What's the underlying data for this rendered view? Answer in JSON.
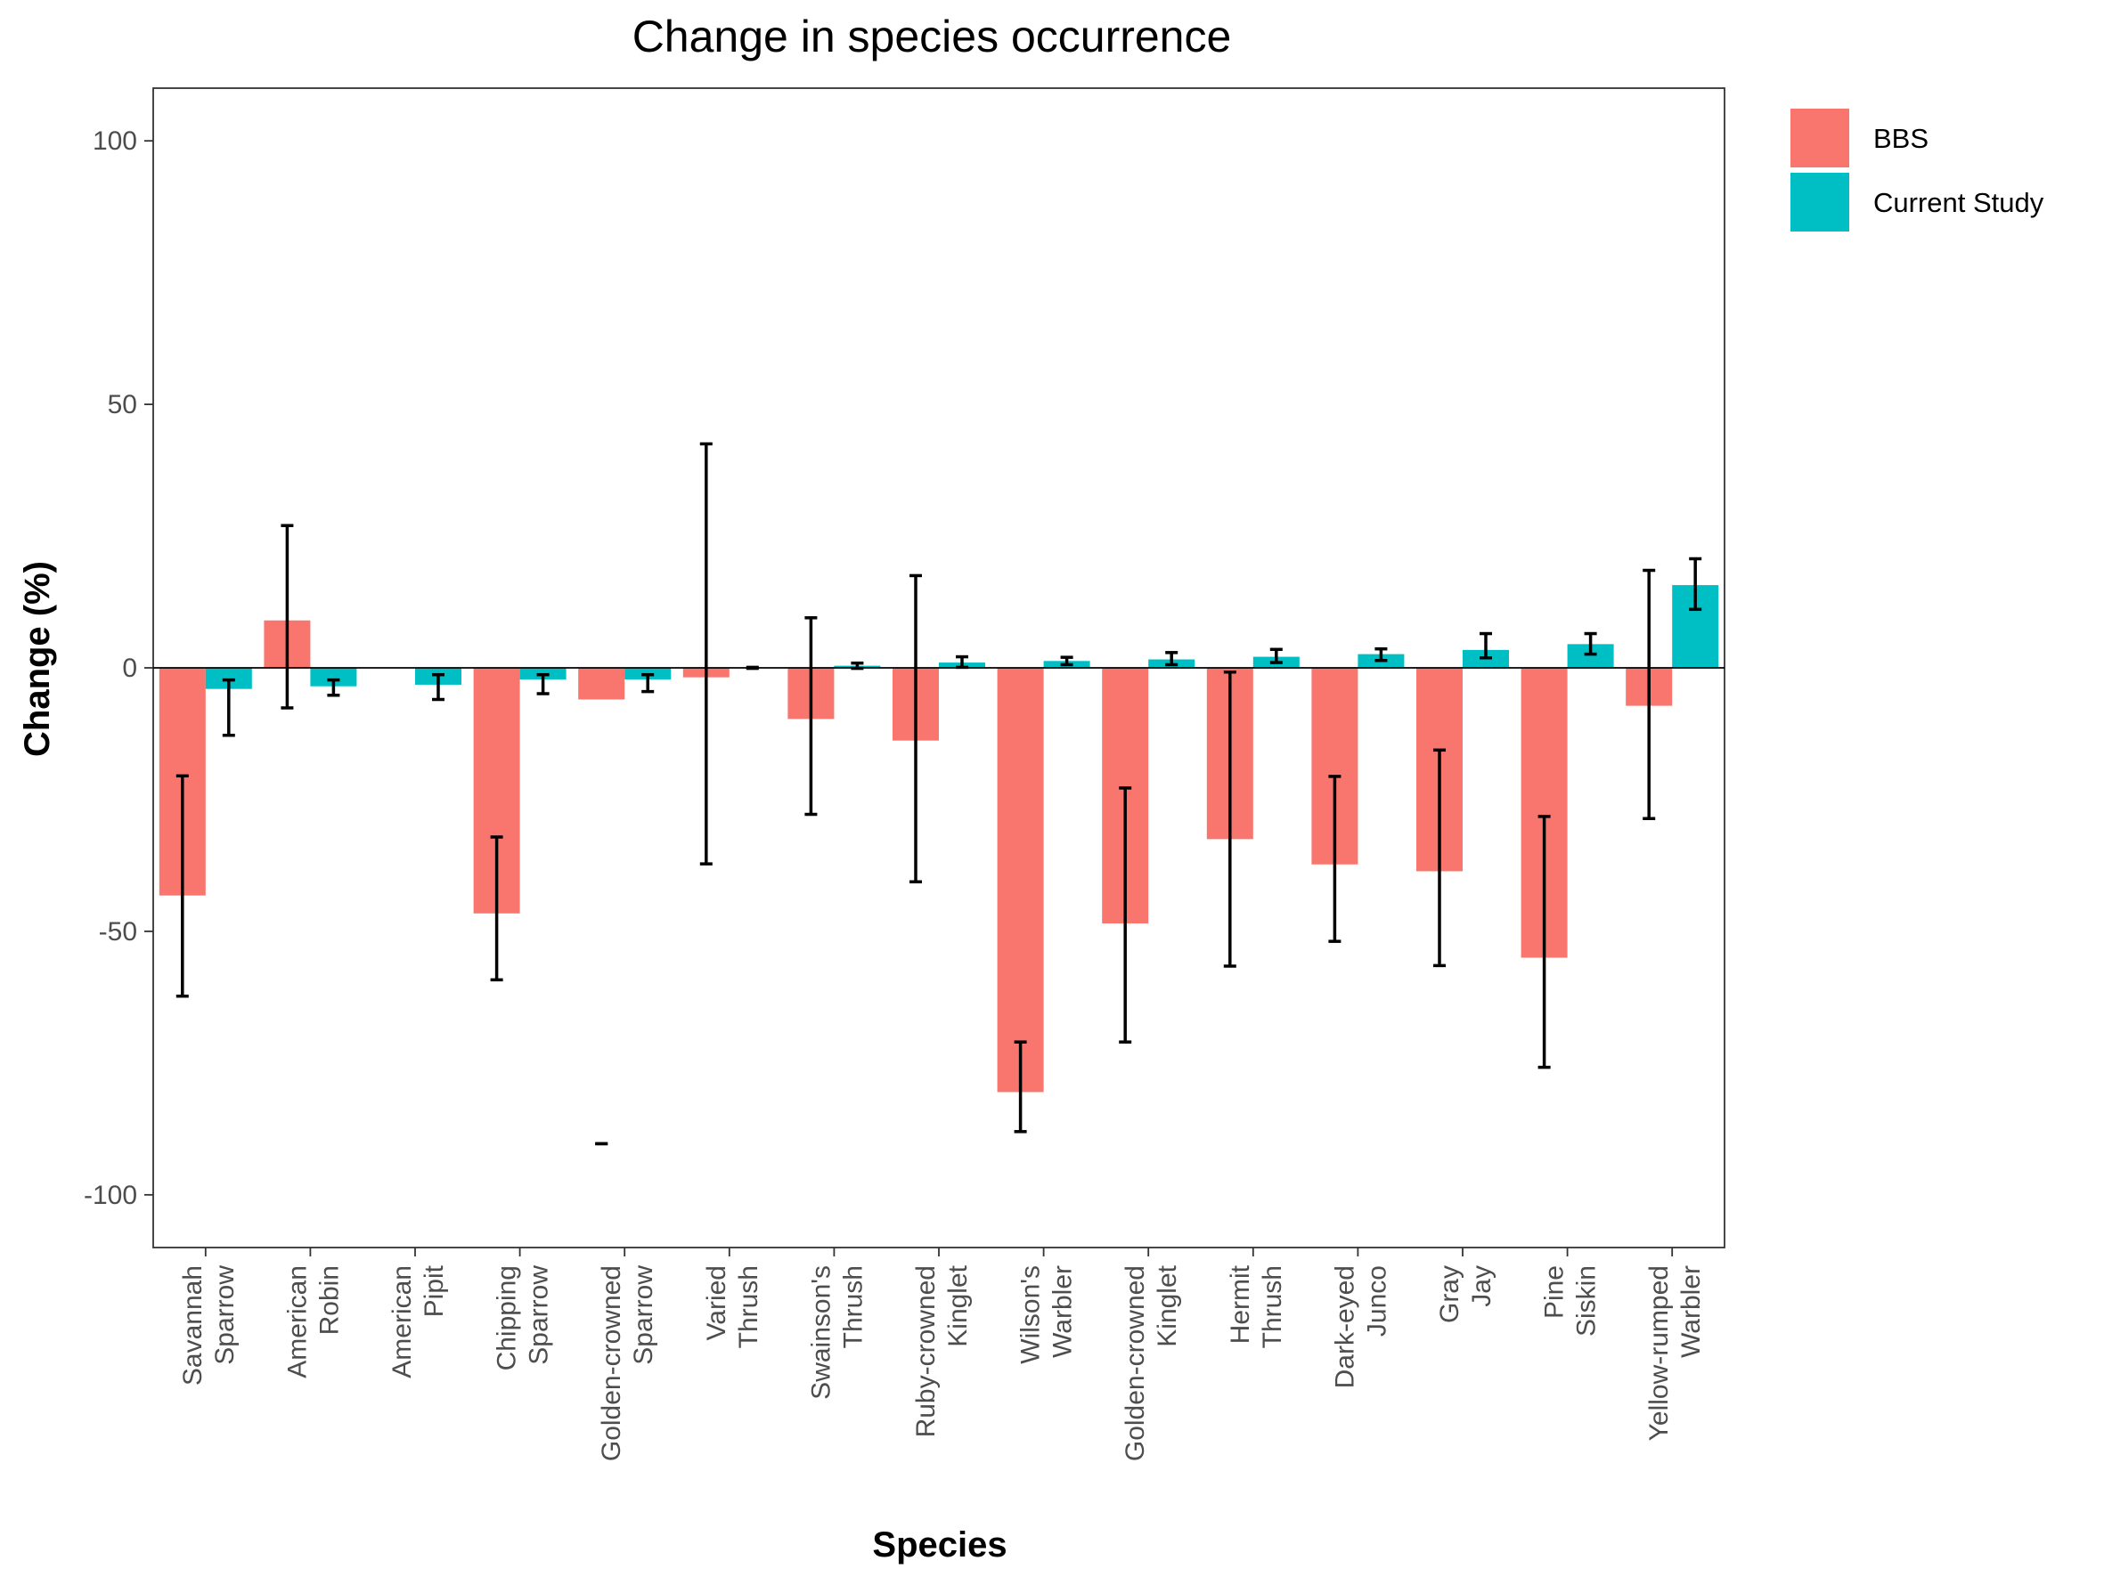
{
  "chart_data": {
    "type": "bar",
    "title": "Change in species occurrence",
    "xlabel": "Species",
    "ylabel": "Change (%)",
    "ylim": [
      -110,
      110
    ],
    "yticks": [
      -100,
      -50,
      0,
      50,
      100
    ],
    "ytick_labels": [
      "-100",
      "-50",
      "0",
      "50",
      "100"
    ],
    "grid": false,
    "legend_position": "right",
    "categories": [
      [
        "Savannah",
        "Sparrow"
      ],
      [
        "American",
        "Robin"
      ],
      [
        "American",
        "Pipit"
      ],
      [
        "Chipping",
        "Sparrow"
      ],
      [
        "Golden-crowned",
        "Sparrow"
      ],
      [
        "Varied",
        "Thrush"
      ],
      [
        "Swainson's",
        "Thrush"
      ],
      [
        "Ruby-crowned",
        "Kinglet"
      ],
      [
        "Wilson's",
        "Warbler"
      ],
      [
        "Golden-crowned",
        "Kinglet"
      ],
      [
        "Hermit",
        "Thrush"
      ],
      [
        "Dark-eyed",
        "Junco"
      ],
      [
        "Gray",
        "Jay"
      ],
      [
        "Pine",
        "Siskin"
      ],
      [
        "Yellow-rumped",
        "Warbler"
      ]
    ],
    "series": [
      {
        "name": "BBS",
        "color": "#F8766D",
        "values": [
          -43.2,
          9.0,
          null,
          -46.6,
          -6.0,
          -1.8,
          -9.7,
          -13.8,
          -80.5,
          -48.5,
          -32.5,
          -37.3,
          -38.6,
          -55.0,
          -7.2
        ],
        "error_low": [
          -62.3,
          -7.6,
          null,
          -59.2,
          -90.3,
          -37.2,
          -27.8,
          -40.6,
          -88.0,
          -71.0,
          -56.6,
          -51.9,
          -56.5,
          -75.8,
          -28.6
        ],
        "error_high": [
          -20.5,
          27.0,
          null,
          -32.1,
          -90.3,
          42.5,
          9.5,
          17.5,
          -71.0,
          -22.8,
          -0.8,
          -20.6,
          -15.6,
          -28.2,
          18.5
        ]
      },
      {
        "name": "Current Study",
        "color": "#00BFC4",
        "values": [
          -4.0,
          -3.5,
          -3.2,
          -2.2,
          -2.2,
          0,
          0.4,
          1.0,
          1.3,
          1.6,
          2.1,
          2.6,
          3.4,
          4.5,
          15.7
        ],
        "error_low": [
          -12.8,
          -5.2,
          -6.0,
          -4.9,
          -4.5,
          -0.1,
          -0.1,
          0.1,
          0.6,
          0.6,
          1.0,
          1.4,
          1.9,
          2.6,
          11.1
        ],
        "error_high": [
          -2.3,
          -2.3,
          -1.3,
          -1.3,
          -1.3,
          0.1,
          0.9,
          2.1,
          2.0,
          2.9,
          3.5,
          3.6,
          6.5,
          6.5,
          20.7
        ]
      }
    ]
  }
}
